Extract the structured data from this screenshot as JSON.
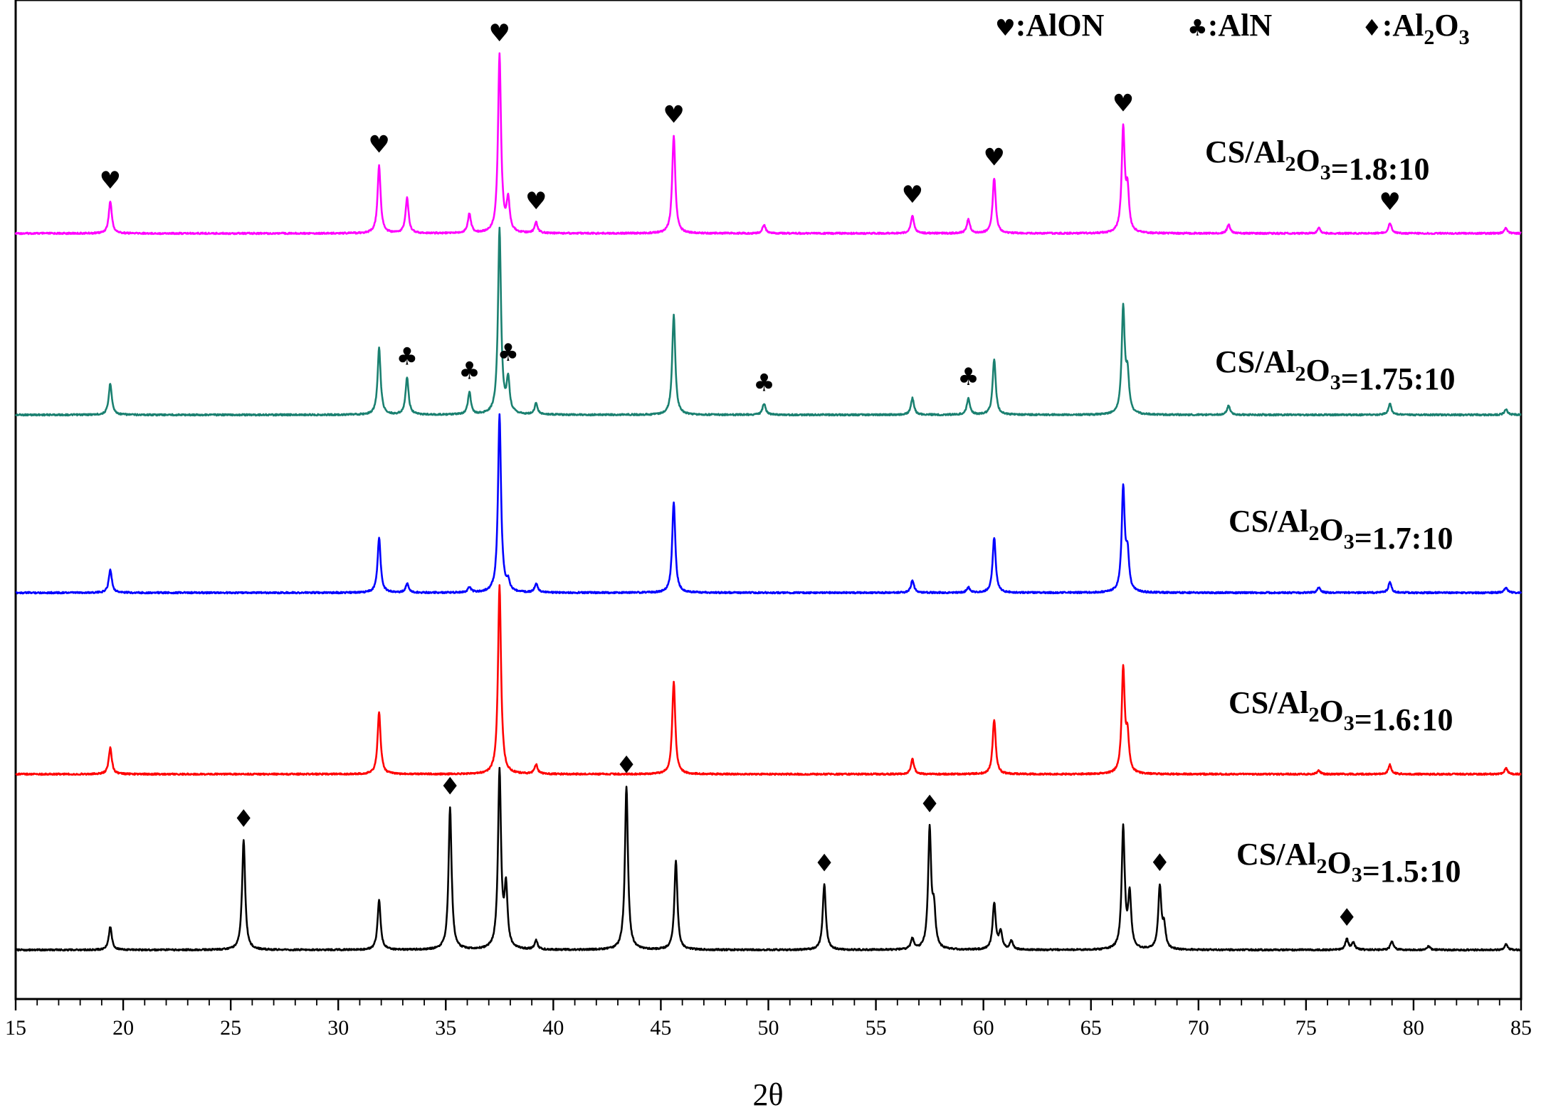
{
  "chart_data": {
    "type": "line",
    "title": "",
    "xlabel": "2θ",
    "ylabel": "",
    "xlim": [
      15,
      85
    ],
    "x_ticks": [
      15,
      20,
      25,
      30,
      35,
      40,
      45,
      50,
      55,
      60,
      65,
      70,
      75,
      80,
      85
    ],
    "grid": false,
    "legend": {
      "placement": "top-right",
      "entries": [
        {
          "symbol": "♥",
          "text": ":AlON"
        },
        {
          "symbol": "♣",
          "text": ":AlN"
        },
        {
          "symbol": "♦",
          "text": ":Al",
          "sub": "2",
          "text2": "O",
          "sub2": "3"
        }
      ]
    },
    "series": [
      {
        "name": "CS/Al2O3=1.8:10",
        "label_parts": [
          "CS/Al",
          "2",
          "O",
          "3",
          "=1.8:10"
        ],
        "color": "#ff00ff",
        "peaks": [
          [
            19.4,
            0.18
          ],
          [
            31.9,
            0.38
          ],
          [
            33.2,
            0.2
          ],
          [
            36.1,
            0.11
          ],
          [
            37.5,
            1.0
          ],
          [
            37.9,
            0.18
          ],
          [
            39.2,
            0.06
          ],
          [
            45.6,
            0.55
          ],
          [
            49.8,
            0.05
          ],
          [
            56.7,
            0.1
          ],
          [
            59.3,
            0.08
          ],
          [
            60.5,
            0.31
          ],
          [
            66.5,
            0.58
          ],
          [
            66.7,
            0.22
          ],
          [
            71.4,
            0.05
          ],
          [
            75.6,
            0.03
          ],
          [
            78.9,
            0.06
          ],
          [
            84.3,
            0.03
          ]
        ]
      },
      {
        "name": "CS/Al2O3=1.75:10",
        "label_parts": [
          "CS/Al",
          "2",
          "O",
          "3",
          "=1.75:10"
        ],
        "color": "#1a8070",
        "peaks": [
          [
            19.4,
            0.17
          ],
          [
            31.9,
            0.36
          ],
          [
            33.2,
            0.2
          ],
          [
            36.1,
            0.12
          ],
          [
            37.5,
            1.0
          ],
          [
            37.9,
            0.18
          ],
          [
            39.2,
            0.06
          ],
          [
            45.6,
            0.54
          ],
          [
            49.8,
            0.06
          ],
          [
            56.7,
            0.09
          ],
          [
            59.3,
            0.09
          ],
          [
            60.5,
            0.3
          ],
          [
            66.5,
            0.57
          ],
          [
            66.7,
            0.2
          ],
          [
            71.4,
            0.05
          ],
          [
            78.9,
            0.06
          ],
          [
            84.3,
            0.03
          ]
        ]
      },
      {
        "name": "CS/Al2O3=1.7:10",
        "label_parts": [
          "CS/Al",
          "2",
          "O",
          "3",
          "=1.7:10"
        ],
        "color": "#0000ff",
        "peaks": [
          [
            19.4,
            0.13
          ],
          [
            31.9,
            0.31
          ],
          [
            33.2,
            0.05
          ],
          [
            36.1,
            0.03
          ],
          [
            37.5,
            1.0
          ],
          [
            37.9,
            0.05
          ],
          [
            39.2,
            0.05
          ],
          [
            45.6,
            0.51
          ],
          [
            56.7,
            0.07
          ],
          [
            59.3,
            0.03
          ],
          [
            60.5,
            0.31
          ],
          [
            66.5,
            0.58
          ],
          [
            66.7,
            0.2
          ],
          [
            75.6,
            0.03
          ],
          [
            78.9,
            0.06
          ],
          [
            84.3,
            0.03
          ]
        ]
      },
      {
        "name": "CS/Al2O3=1.6:10",
        "label_parts": [
          "CS/Al",
          "2",
          "O",
          "3",
          "=1.6:10"
        ],
        "color": "#ff0000",
        "peaks": [
          [
            19.4,
            0.14
          ],
          [
            31.9,
            0.33
          ],
          [
            37.5,
            1.0
          ],
          [
            39.2,
            0.05
          ],
          [
            45.6,
            0.49
          ],
          [
            56.7,
            0.08
          ],
          [
            60.5,
            0.29
          ],
          [
            66.5,
            0.55
          ],
          [
            66.7,
            0.18
          ],
          [
            75.6,
            0.02
          ],
          [
            78.9,
            0.05
          ],
          [
            84.3,
            0.03
          ]
        ]
      },
      {
        "name": "CS/Al2O3=1.5:10",
        "label_parts": [
          "CS/Al",
          "2",
          "O",
          "3",
          "=1.5:10"
        ],
        "color": "#000000",
        "peaks": [
          [
            19.4,
            0.13
          ],
          [
            25.6,
            0.62
          ],
          [
            31.9,
            0.28
          ],
          [
            35.2,
            0.8
          ],
          [
            37.5,
            1.0
          ],
          [
            37.8,
            0.33
          ],
          [
            39.2,
            0.05
          ],
          [
            43.4,
            0.92
          ],
          [
            45.7,
            0.5
          ],
          [
            52.6,
            0.37
          ],
          [
            56.7,
            0.06
          ],
          [
            57.5,
            0.67
          ],
          [
            57.7,
            0.2
          ],
          [
            60.5,
            0.26
          ],
          [
            60.8,
            0.1
          ],
          [
            61.3,
            0.05
          ],
          [
            66.5,
            0.68
          ],
          [
            66.8,
            0.3
          ],
          [
            68.2,
            0.35
          ],
          [
            68.4,
            0.12
          ],
          [
            76.9,
            0.06
          ],
          [
            77.2,
            0.04
          ],
          [
            79.0,
            0.05
          ],
          [
            80.7,
            0.02
          ],
          [
            84.3,
            0.03
          ]
        ]
      }
    ],
    "markers": [
      {
        "symbol": "♥",
        "series": 0,
        "x": [
          19.4,
          31.9,
          37.5,
          39.2,
          45.6,
          56.7,
          60.5,
          66.5,
          78.9
        ]
      },
      {
        "symbol": "♣",
        "series": 1,
        "x": [
          33.2,
          36.1,
          37.9,
          49.8,
          59.3
        ]
      },
      {
        "symbol": "♦",
        "series": 4,
        "x": [
          25.6,
          35.2,
          43.4,
          52.6,
          57.5,
          68.2,
          76.9
        ]
      }
    ]
  }
}
